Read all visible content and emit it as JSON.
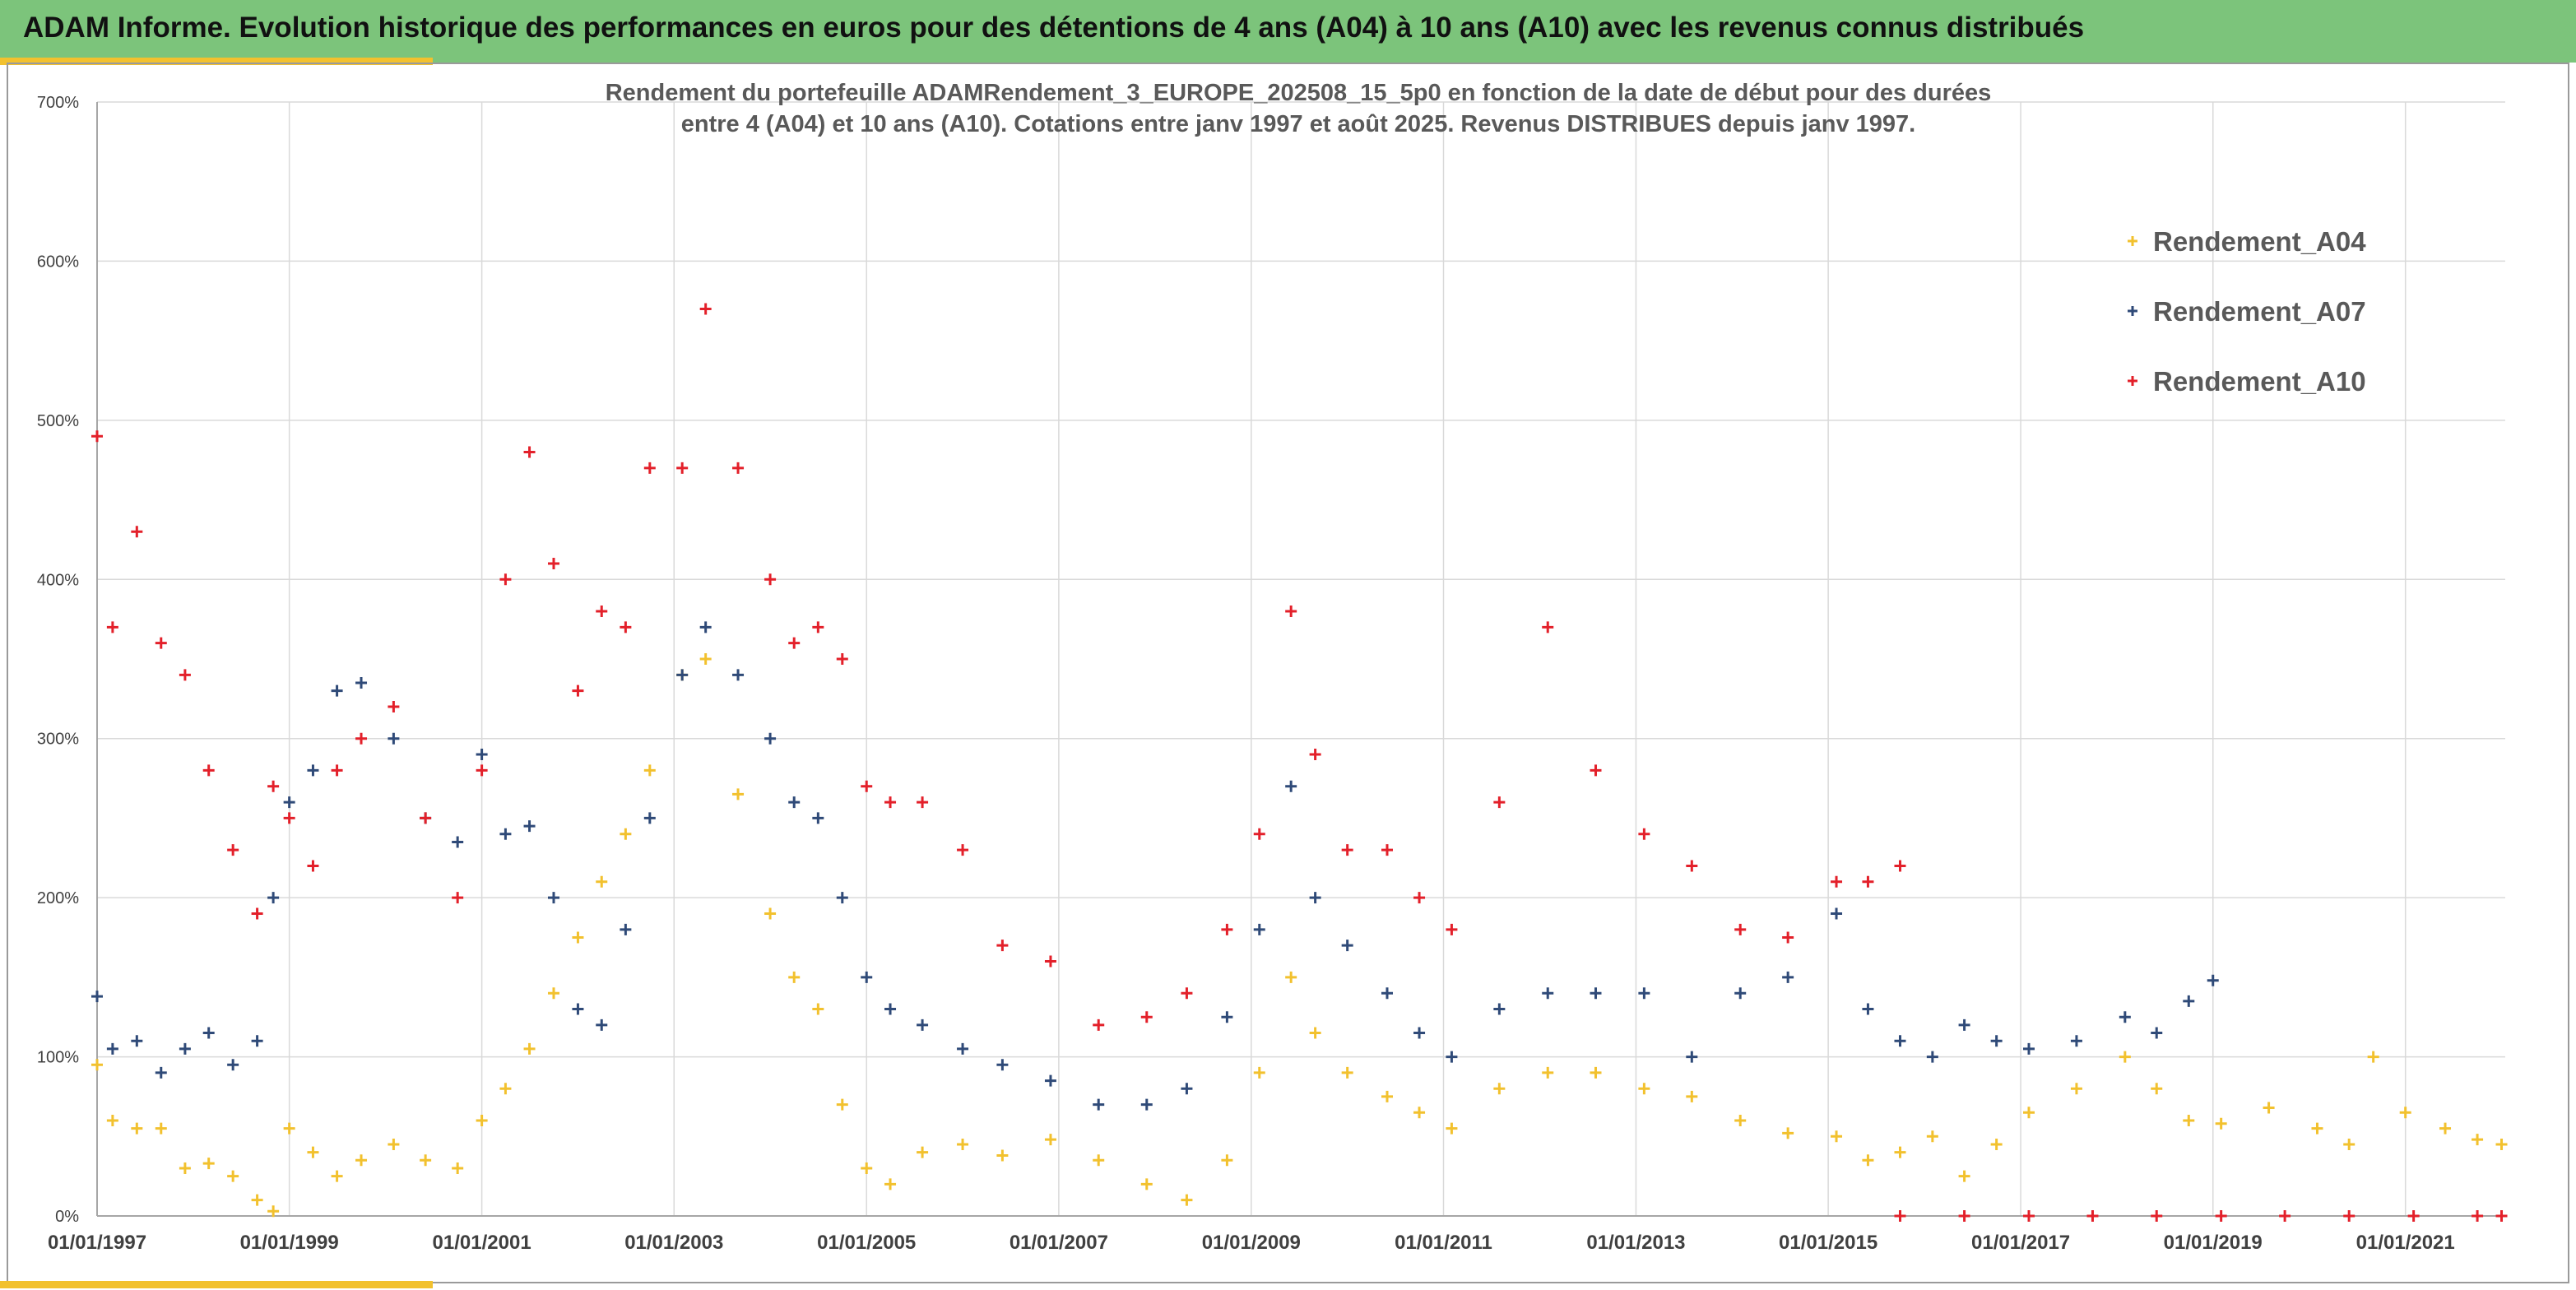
{
  "banner": {
    "title": "ADAM Informe. Evolution historique des performances en euros pour des détentions de 4 ans (A04) à 10 ans (A10) avec les revenus connus distribués"
  },
  "colors": {
    "banner_bg": "#7cc47b",
    "accent": "#f2c12e",
    "A04": "#f2c12e",
    "A07": "#2f4a78",
    "A10": "#e3202a"
  },
  "chart_data": {
    "type": "scatter",
    "marker": "+",
    "title_lines": [
      "Rendement du portefeuille ADAMRendement_3_EUROPE_202508_15_5p0  en fonction de la date de début pour des durées",
      "entre 4 (A04) et 10 ans (A10). Cotations entre janv 1997 et août 2025. Revenus DISTRIBUES depuis janv 1997."
    ],
    "ylim": [
      0,
      700
    ],
    "yticks": [
      0,
      100,
      200,
      300,
      400,
      500,
      600,
      700
    ],
    "y_tick_labels": [
      "0%",
      "100%",
      "200%",
      "300%",
      "400%",
      "500%",
      "600%",
      "700%"
    ],
    "xlim": [
      "1997-01-01",
      "2022-01-15"
    ],
    "x_tick_labels": [
      "01/01/1997",
      "01/01/1999",
      "01/01/2001",
      "01/01/2003",
      "01/01/2005",
      "01/01/2007",
      "01/01/2009",
      "01/01/2011",
      "01/01/2013",
      "01/01/2015",
      "01/01/2017",
      "01/01/2019",
      "01/01/2021"
    ],
    "grid": true,
    "legend_position": "top-right",
    "series": [
      {
        "name": "Rendement_A04",
        "color": "#f2c12e",
        "points": [
          [
            "1997-01-01",
            95
          ],
          [
            "1997-03-01",
            60
          ],
          [
            "1997-06-01",
            55
          ],
          [
            "1997-09-01",
            55
          ],
          [
            "1997-12-01",
            30
          ],
          [
            "1998-03-01",
            33
          ],
          [
            "1998-06-01",
            25
          ],
          [
            "1998-09-01",
            10
          ],
          [
            "1998-11-01",
            3
          ],
          [
            "1999-01-01",
            55
          ],
          [
            "1999-04-01",
            40
          ],
          [
            "1999-07-01",
            25
          ],
          [
            "1999-10-01",
            35
          ],
          [
            "2000-02-01",
            45
          ],
          [
            "2000-06-01",
            35
          ],
          [
            "2000-10-01",
            30
          ],
          [
            "2001-01-01",
            60
          ],
          [
            "2001-04-01",
            80
          ],
          [
            "2001-07-01",
            105
          ],
          [
            "2001-10-01",
            140
          ],
          [
            "2002-01-01",
            175
          ],
          [
            "2002-04-01",
            210
          ],
          [
            "2002-07-01",
            240
          ],
          [
            "2002-10-01",
            280
          ],
          [
            "2003-02-01",
            340
          ],
          [
            "2003-05-01",
            350
          ],
          [
            "2003-09-01",
            265
          ],
          [
            "2004-01-01",
            190
          ],
          [
            "2004-04-01",
            150
          ],
          [
            "2004-07-01",
            130
          ],
          [
            "2004-10-01",
            70
          ],
          [
            "2005-01-01",
            30
          ],
          [
            "2005-04-01",
            20
          ],
          [
            "2005-08-01",
            40
          ],
          [
            "2006-01-01",
            45
          ],
          [
            "2006-06-01",
            38
          ],
          [
            "2006-12-01",
            48
          ],
          [
            "2007-06-01",
            35
          ],
          [
            "2007-12-01",
            20
          ],
          [
            "2008-05-01",
            10
          ],
          [
            "2008-10-01",
            35
          ],
          [
            "2009-02-01",
            90
          ],
          [
            "2009-06-01",
            150
          ],
          [
            "2009-09-01",
            115
          ],
          [
            "2010-01-01",
            90
          ],
          [
            "2010-06-01",
            75
          ],
          [
            "2010-10-01",
            65
          ],
          [
            "2011-02-01",
            55
          ],
          [
            "2011-08-01",
            80
          ],
          [
            "2012-02-01",
            90
          ],
          [
            "2012-08-01",
            90
          ],
          [
            "2013-02-01",
            80
          ],
          [
            "2013-08-01",
            75
          ],
          [
            "2014-02-01",
            60
          ],
          [
            "2014-08-01",
            52
          ],
          [
            "2015-02-01",
            50
          ],
          [
            "2015-06-01",
            35
          ],
          [
            "2015-10-01",
            40
          ],
          [
            "2016-02-01",
            50
          ],
          [
            "2016-06-01",
            25
          ],
          [
            "2016-10-01",
            45
          ],
          [
            "2017-02-01",
            65
          ],
          [
            "2017-08-01",
            80
          ],
          [
            "2018-02-01",
            100
          ],
          [
            "2018-06-01",
            80
          ],
          [
            "2018-10-01",
            60
          ],
          [
            "2019-02-01",
            58
          ],
          [
            "2019-08-01",
            68
          ],
          [
            "2020-02-01",
            55
          ],
          [
            "2020-06-01",
            45
          ],
          [
            "2020-09-01",
            100
          ],
          [
            "2021-01-01",
            65
          ],
          [
            "2021-06-01",
            55
          ],
          [
            "2021-10-01",
            48
          ],
          [
            "2022-01-01",
            45
          ]
        ]
      },
      {
        "name": "Rendement_A07",
        "color": "#2f4a78",
        "points": [
          [
            "1997-01-01",
            138
          ],
          [
            "1997-03-01",
            105
          ],
          [
            "1997-06-01",
            110
          ],
          [
            "1997-09-01",
            90
          ],
          [
            "1997-12-01",
            105
          ],
          [
            "1998-03-01",
            115
          ],
          [
            "1998-06-01",
            95
          ],
          [
            "1998-09-01",
            110
          ],
          [
            "1998-11-01",
            200
          ],
          [
            "1999-01-01",
            260
          ],
          [
            "1999-04-01",
            280
          ],
          [
            "1999-07-01",
            330
          ],
          [
            "1999-10-01",
            335
          ],
          [
            "2000-02-01",
            300
          ],
          [
            "2000-06-01",
            250
          ],
          [
            "2000-10-01",
            235
          ],
          [
            "2001-01-01",
            290
          ],
          [
            "2001-04-01",
            240
          ],
          [
            "2001-07-01",
            245
          ],
          [
            "2001-10-01",
            200
          ],
          [
            "2002-01-01",
            130
          ],
          [
            "2002-04-01",
            120
          ],
          [
            "2002-07-01",
            180
          ],
          [
            "2002-10-01",
            250
          ],
          [
            "2003-02-01",
            340
          ],
          [
            "2003-05-01",
            370
          ],
          [
            "2003-09-01",
            340
          ],
          [
            "2004-01-01",
            300
          ],
          [
            "2004-04-01",
            260
          ],
          [
            "2004-07-01",
            250
          ],
          [
            "2004-10-01",
            200
          ],
          [
            "2005-01-01",
            150
          ],
          [
            "2005-04-01",
            130
          ],
          [
            "2005-08-01",
            120
          ],
          [
            "2006-01-01",
            105
          ],
          [
            "2006-06-01",
            95
          ],
          [
            "2006-12-01",
            85
          ],
          [
            "2007-06-01",
            70
          ],
          [
            "2007-12-01",
            70
          ],
          [
            "2008-05-01",
            80
          ],
          [
            "2008-10-01",
            125
          ],
          [
            "2009-02-01",
            180
          ],
          [
            "2009-06-01",
            270
          ],
          [
            "2009-09-01",
            200
          ],
          [
            "2010-01-01",
            170
          ],
          [
            "2010-06-01",
            140
          ],
          [
            "2010-10-01",
            115
          ],
          [
            "2011-02-01",
            100
          ],
          [
            "2011-08-01",
            130
          ],
          [
            "2012-02-01",
            140
          ],
          [
            "2012-08-01",
            140
          ],
          [
            "2013-02-01",
            140
          ],
          [
            "2013-08-01",
            100
          ],
          [
            "2014-02-01",
            140
          ],
          [
            "2014-08-01",
            150
          ],
          [
            "2015-02-01",
            190
          ],
          [
            "2015-06-01",
            130
          ],
          [
            "2015-10-01",
            110
          ],
          [
            "2016-02-01",
            100
          ],
          [
            "2016-06-01",
            120
          ],
          [
            "2016-10-01",
            110
          ],
          [
            "2017-02-01",
            105
          ],
          [
            "2017-08-01",
            110
          ],
          [
            "2018-02-01",
            125
          ],
          [
            "2018-06-01",
            115
          ],
          [
            "2018-10-01",
            135
          ],
          [
            "2019-01-01",
            148
          ]
        ]
      },
      {
        "name": "Rendement_A10",
        "color": "#e3202a",
        "points": [
          [
            "1997-01-01",
            490
          ],
          [
            "1997-03-01",
            370
          ],
          [
            "1997-06-01",
            430
          ],
          [
            "1997-09-01",
            360
          ],
          [
            "1997-12-01",
            340
          ],
          [
            "1998-03-01",
            280
          ],
          [
            "1998-06-01",
            230
          ],
          [
            "1998-09-01",
            190
          ],
          [
            "1998-11-01",
            270
          ],
          [
            "1999-01-01",
            250
          ],
          [
            "1999-04-01",
            220
          ],
          [
            "1999-07-01",
            280
          ],
          [
            "1999-10-01",
            300
          ],
          [
            "2000-02-01",
            320
          ],
          [
            "2000-06-01",
            250
          ],
          [
            "2000-10-01",
            200
          ],
          [
            "2001-01-01",
            280
          ],
          [
            "2001-04-01",
            400
          ],
          [
            "2001-07-01",
            480
          ],
          [
            "2001-10-01",
            410
          ],
          [
            "2002-01-01",
            330
          ],
          [
            "2002-04-01",
            380
          ],
          [
            "2002-07-01",
            370
          ],
          [
            "2002-10-01",
            470
          ],
          [
            "2003-02-01",
            470
          ],
          [
            "2003-05-01",
            570
          ],
          [
            "2003-09-01",
            470
          ],
          [
            "2004-01-01",
            400
          ],
          [
            "2004-04-01",
            360
          ],
          [
            "2004-07-01",
            370
          ],
          [
            "2004-10-01",
            350
          ],
          [
            "2005-01-01",
            270
          ],
          [
            "2005-04-01",
            260
          ],
          [
            "2005-08-01",
            260
          ],
          [
            "2006-01-01",
            230
          ],
          [
            "2006-06-01",
            170
          ],
          [
            "2006-12-01",
            160
          ],
          [
            "2007-06-01",
            120
          ],
          [
            "2007-12-01",
            125
          ],
          [
            "2008-05-01",
            140
          ],
          [
            "2008-10-01",
            180
          ],
          [
            "2009-02-01",
            240
          ],
          [
            "2009-06-01",
            380
          ],
          [
            "2009-09-01",
            290
          ],
          [
            "2010-01-01",
            230
          ],
          [
            "2010-06-01",
            230
          ],
          [
            "2010-10-01",
            200
          ],
          [
            "2011-02-01",
            180
          ],
          [
            "2011-08-01",
            260
          ],
          [
            "2012-02-01",
            370
          ],
          [
            "2012-08-01",
            280
          ],
          [
            "2013-02-01",
            240
          ],
          [
            "2013-08-01",
            220
          ],
          [
            "2014-02-01",
            180
          ],
          [
            "2014-08-01",
            175
          ],
          [
            "2015-02-01",
            210
          ],
          [
            "2015-06-01",
            210
          ],
          [
            "2015-10-01",
            220
          ],
          [
            "2015-10-01",
            0
          ],
          [
            "2016-06-01",
            0
          ],
          [
            "2017-02-01",
            0
          ],
          [
            "2017-10-01",
            0
          ],
          [
            "2018-06-01",
            0
          ],
          [
            "2019-02-01",
            0
          ],
          [
            "2019-10-01",
            0
          ],
          [
            "2020-06-01",
            0
          ],
          [
            "2021-02-01",
            0
          ],
          [
            "2021-10-01",
            0
          ],
          [
            "2022-01-01",
            0
          ]
        ]
      }
    ]
  }
}
